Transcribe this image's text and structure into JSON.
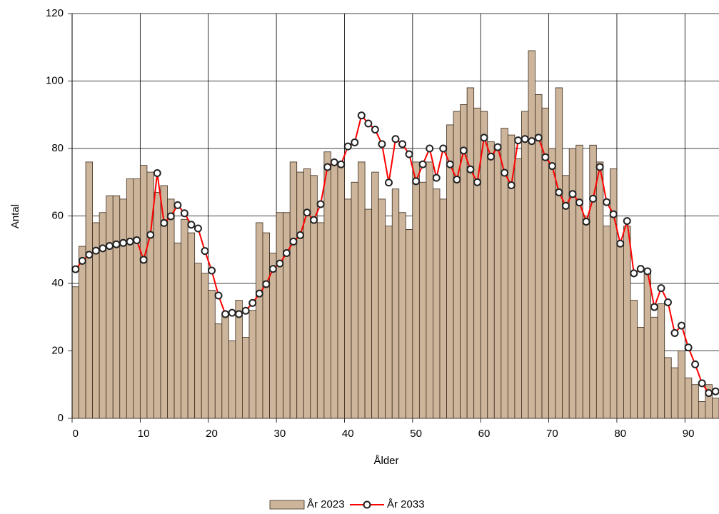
{
  "chart_data": {
    "type": "bar",
    "x_label": "Ålder",
    "y_label": "Antal",
    "x": [
      0,
      1,
      2,
      3,
      4,
      5,
      6,
      7,
      8,
      9,
      10,
      11,
      12,
      13,
      14,
      15,
      16,
      17,
      18,
      19,
      20,
      21,
      22,
      23,
      24,
      25,
      26,
      27,
      28,
      29,
      30,
      31,
      32,
      33,
      34,
      35,
      36,
      37,
      38,
      39,
      40,
      41,
      42,
      43,
      44,
      45,
      46,
      47,
      48,
      49,
      50,
      51,
      52,
      53,
      54,
      55,
      56,
      57,
      58,
      59,
      60,
      61,
      62,
      63,
      64,
      65,
      66,
      67,
      68,
      69,
      70,
      71,
      72,
      73,
      74,
      75,
      76,
      77,
      78,
      79,
      80,
      81,
      82,
      83,
      84,
      85,
      86,
      87,
      88,
      89,
      90,
      91,
      92,
      93,
      94
    ],
    "series": [
      {
        "name": "År 2023",
        "type": "bar",
        "color": "#cdb59b",
        "values": [
          39,
          51,
          76,
          58,
          61,
          66,
          66,
          65,
          71,
          71,
          75,
          73,
          67,
          69,
          65,
          52,
          59,
          55,
          46,
          43,
          38,
          28,
          31,
          23,
          35,
          24,
          32,
          58,
          55,
          49,
          61,
          61,
          76,
          73,
          74,
          72,
          58,
          79,
          76,
          75,
          65,
          70,
          76,
          62,
          73,
          65,
          57,
          68,
          61,
          56,
          76,
          70,
          76,
          68,
          65,
          87,
          91,
          93,
          98,
          92,
          91,
          82,
          80,
          86,
          84,
          77,
          91,
          109,
          96,
          92,
          80,
          98,
          72,
          80,
          81,
          60,
          81,
          76,
          57,
          74,
          52,
          57,
          35,
          27,
          43,
          30,
          34,
          18,
          15,
          20,
          12,
          10,
          5,
          10,
          6
        ]
      },
      {
        "name": "År 2033",
        "type": "line",
        "color": "#ff0000",
        "values": [
          44.2,
          46.7,
          48.5,
          49.7,
          50.4,
          51.1,
          51.6,
          52,
          52.4,
          52.8,
          47,
          54.4,
          72.7,
          57.9,
          59.9,
          63.2,
          60.8,
          57.4,
          56.3,
          49.6,
          43.8,
          36.4,
          30.9,
          31.3,
          30.9,
          31.9,
          34.2,
          37,
          39.8,
          44.3,
          45.9,
          49,
          52.4,
          54.3,
          61,
          58.8,
          63.5,
          74.5,
          75.9,
          75.3,
          80.6,
          81.8,
          89.8,
          87.4,
          85.6,
          81.3,
          69.9,
          82.8,
          81.3,
          78.3,
          70.3,
          75.3,
          80,
          71.3,
          80,
          75.3,
          70.8,
          79.4,
          73.8,
          70,
          83.2,
          77.6,
          80.4,
          72.8,
          69.1,
          82.4,
          82.8,
          82.2,
          83.2,
          77.4,
          74.8,
          67,
          63,
          66.5,
          64,
          58.3,
          65.1,
          74.5,
          64.1,
          60.5,
          51.8,
          58.5,
          43,
          44.3,
          43.6,
          33,
          38.6,
          34.4,
          25.3,
          27.5,
          21,
          16,
          10.4,
          7.5,
          8
        ]
      }
    ],
    "xlim": [
      -0.5,
      94.5
    ],
    "xticks": [
      0,
      10,
      20,
      30,
      40,
      50,
      60,
      70,
      80,
      90
    ],
    "ylim": [
      0,
      120
    ],
    "yticks": [
      0,
      20,
      40,
      60,
      80,
      100,
      120
    ],
    "grid": true,
    "legend": "bottom"
  }
}
